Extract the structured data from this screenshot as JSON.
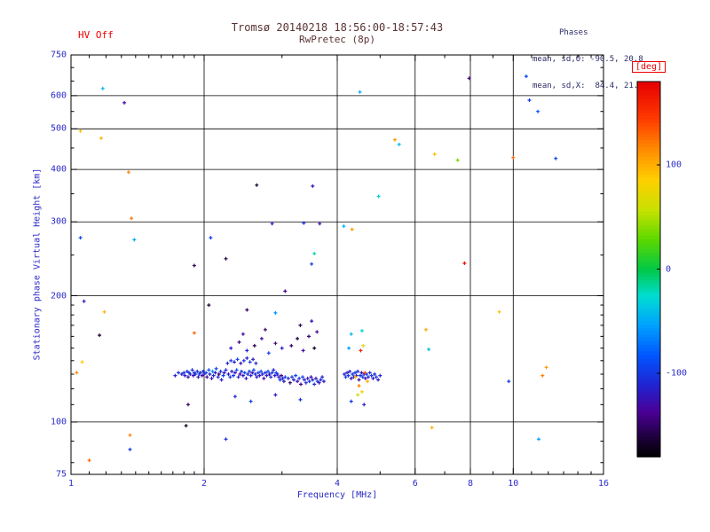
{
  "chart_data": {
    "type": "scatter",
    "title": "Tromsø 20140218 18:56:00-18:57:43",
    "subtitle": "RwPretec (8p)",
    "annotations": {
      "hv_status": "HV Off",
      "phases_header": "Phases",
      "phases_o": "mean, sd,O: -90.5, 20.8",
      "phases_x": "mean, sd,X:  84.4, 21.7"
    },
    "xlabel": "Frequency [MHz]",
    "ylabel": "Stationary phase Virtual Height [km]",
    "xscale": "log",
    "yscale": "log",
    "xlim": [
      1,
      16
    ],
    "ylim": [
      75,
      750
    ],
    "x_ticks": [
      1,
      2,
      4,
      6,
      8,
      10,
      16
    ],
    "x_minor_ticks": [
      1.1,
      1.2,
      1.3,
      1.4,
      1.5,
      1.6,
      1.7,
      1.8,
      1.9,
      3,
      5,
      7,
      9,
      11,
      12,
      13,
      14,
      15
    ],
    "y_ticks": [
      75,
      100,
      200,
      300,
      400,
      500,
      600,
      750
    ],
    "y_minor_ticks": [
      80,
      90,
      110,
      120,
      130,
      140,
      150,
      160,
      170,
      180,
      190,
      250,
      350,
      450,
      550,
      650,
      700
    ],
    "x_gridlines": [
      2,
      4,
      6,
      8,
      10
    ],
    "y_gridlines": [
      100,
      200,
      300,
      400,
      500,
      600
    ],
    "grid": true,
    "legend": false,
    "colorbar": {
      "label": "[deg]",
      "min": -180,
      "max": 180,
      "ticks": [
        100,
        0,
        -100
      ],
      "position": "right"
    },
    "colormap_stops": [
      [
        0.0,
        "#000000"
      ],
      [
        0.05,
        "#1c0038"
      ],
      [
        0.12,
        "#4b0096"
      ],
      [
        0.19,
        "#2222cf"
      ],
      [
        0.27,
        "#0055ff"
      ],
      [
        0.35,
        "#00a0ff"
      ],
      [
        0.43,
        "#00ddd2"
      ],
      [
        0.5,
        "#00c846"
      ],
      [
        0.58,
        "#5cd800"
      ],
      [
        0.66,
        "#c8e100"
      ],
      [
        0.74,
        "#ffcf00"
      ],
      [
        0.82,
        "#ff8c00"
      ],
      [
        0.9,
        "#ff3c00"
      ],
      [
        1.0,
        "#e60000"
      ]
    ],
    "point_format": "[frequency_MHz, virtual_height_km, phase_deg]",
    "points": [
      [
        1.72,
        129,
        -112
      ],
      [
        1.75,
        131,
        -105
      ],
      [
        1.78,
        130,
        -110
      ],
      [
        1.8,
        131,
        -105
      ],
      [
        1.81,
        129,
        -118
      ],
      [
        1.83,
        132,
        -100
      ],
      [
        1.84,
        128,
        -125
      ],
      [
        1.85,
        131,
        -95
      ],
      [
        1.86,
        130,
        -112
      ],
      [
        1.88,
        133,
        -108
      ],
      [
        1.89,
        129,
        -120
      ],
      [
        1.9,
        131,
        -98
      ],
      [
        1.91,
        130,
        -115
      ],
      [
        1.93,
        132,
        -104
      ],
      [
        1.94,
        128,
        -122
      ],
      [
        1.95,
        130,
        -90
      ],
      [
        1.96,
        131,
        -110
      ],
      [
        1.98,
        129,
        -130
      ],
      [
        1.99,
        132,
        -102
      ],
      [
        2.0,
        130,
        -117
      ],
      [
        2.02,
        131,
        -96
      ],
      [
        2.03,
        128,
        -140
      ],
      [
        2.05,
        133,
        -88
      ],
      [
        2.06,
        130,
        -112
      ],
      [
        2.08,
        127,
        -125
      ],
      [
        2.09,
        132,
        -60
      ],
      [
        2.1,
        129,
        -105
      ],
      [
        2.12,
        131,
        -118
      ],
      [
        2.13,
        134,
        -95
      ],
      [
        2.15,
        128,
        -108
      ],
      [
        2.16,
        130,
        -150
      ],
      [
        2.18,
        132,
        -100
      ],
      [
        2.19,
        126,
        -115
      ],
      [
        2.21,
        129,
        -92
      ],
      [
        2.22,
        131,
        -122
      ],
      [
        2.24,
        133,
        -107
      ],
      [
        2.26,
        138,
        -110
      ],
      [
        2.3,
        140,
        -100
      ],
      [
        2.34,
        139,
        -118
      ],
      [
        2.38,
        141,
        -95
      ],
      [
        2.42,
        138,
        -125
      ],
      [
        2.46,
        140,
        -105
      ],
      [
        2.5,
        142,
        -112
      ],
      [
        2.54,
        139,
        -98
      ],
      [
        2.58,
        141,
        -120
      ],
      [
        2.62,
        138,
        -108
      ],
      [
        2.27,
        130,
        -112
      ],
      [
        2.29,
        128,
        -104
      ],
      [
        2.31,
        132,
        -118
      ],
      [
        2.33,
        129,
        -96
      ],
      [
        2.35,
        131,
        -125
      ],
      [
        2.37,
        133,
        -85
      ],
      [
        2.39,
        128,
        -110
      ],
      [
        2.41,
        130,
        -135
      ],
      [
        2.43,
        132,
        -102
      ],
      [
        2.45,
        129,
        -115
      ],
      [
        2.47,
        131,
        -93
      ],
      [
        2.49,
        127,
        -120
      ],
      [
        2.51,
        130,
        -107
      ],
      [
        2.53,
        132,
        -98
      ],
      [
        2.55,
        129,
        -113
      ],
      [
        2.57,
        131,
        -127
      ],
      [
        2.59,
        133,
        -90
      ],
      [
        2.61,
        130,
        -108
      ],
      [
        2.63,
        128,
        -118
      ],
      [
        2.65,
        131,
        -100
      ],
      [
        2.67,
        129,
        -122
      ],
      [
        2.69,
        132,
        -95
      ],
      [
        2.71,
        130,
        -112
      ],
      [
        2.73,
        127,
        -130
      ],
      [
        2.75,
        131,
        -104
      ],
      [
        2.77,
        129,
        -116
      ],
      [
        2.79,
        132,
        -88
      ],
      [
        2.81,
        130,
        -124
      ],
      [
        2.83,
        128,
        -106
      ],
      [
        2.85,
        131,
        -98
      ],
      [
        2.87,
        133,
        -114
      ],
      [
        2.89,
        129,
        -120
      ],
      [
        2.91,
        131,
        -92
      ],
      [
        2.93,
        130,
        -110
      ],
      [
        2.95,
        128,
        -115
      ],
      [
        2.97,
        126,
        -102
      ],
      [
        2.99,
        129,
        -140
      ],
      [
        3.01,
        127,
        -108
      ],
      [
        3.03,
        125,
        -120
      ],
      [
        3.05,
        128,
        -95
      ],
      [
        3.1,
        127,
        -112
      ],
      [
        3.13,
        124,
        -150
      ],
      [
        3.16,
        128,
        -100
      ],
      [
        3.19,
        126,
        -118
      ],
      [
        3.22,
        129,
        -90
      ],
      [
        3.25,
        125,
        -125
      ],
      [
        3.28,
        127,
        -105
      ],
      [
        3.31,
        123,
        -135
      ],
      [
        3.34,
        128,
        -96
      ],
      [
        3.37,
        126,
        -115
      ],
      [
        3.4,
        124,
        -108
      ],
      [
        3.43,
        127,
        -122
      ],
      [
        3.46,
        125,
        -99
      ],
      [
        3.49,
        128,
        -130
      ],
      [
        3.52,
        126,
        -110
      ],
      [
        3.55,
        123,
        -104
      ],
      [
        3.58,
        127,
        -118
      ],
      [
        3.61,
        125,
        -95
      ],
      [
        3.64,
        124,
        -126
      ],
      [
        3.67,
        126,
        -107
      ],
      [
        3.7,
        128,
        -113
      ],
      [
        3.73,
        125,
        -120
      ],
      [
        2.3,
        150,
        -120
      ],
      [
        2.4,
        155,
        -140
      ],
      [
        2.5,
        148,
        -110
      ],
      [
        2.6,
        152,
        -155
      ],
      [
        2.7,
        158,
        -130
      ],
      [
        2.8,
        146,
        -100
      ],
      [
        2.9,
        154,
        -145
      ],
      [
        3.0,
        150,
        -115
      ],
      [
        2.45,
        162,
        -135
      ],
      [
        2.75,
        166,
        -150
      ],
      [
        3.15,
        152,
        -150
      ],
      [
        3.25,
        158,
        -160
      ],
      [
        3.35,
        148,
        -130
      ],
      [
        3.45,
        160,
        -145
      ],
      [
        3.55,
        150,
        -170
      ],
      [
        3.6,
        164,
        -140
      ],
      [
        3.3,
        170,
        -155
      ],
      [
        3.5,
        174,
        -125
      ],
      [
        4.15,
        130,
        -110
      ],
      [
        4.18,
        128,
        -100
      ],
      [
        4.21,
        131,
        -120
      ],
      [
        4.24,
        129,
        -95
      ],
      [
        4.27,
        132,
        -112
      ],
      [
        4.3,
        127,
        -125
      ],
      [
        4.33,
        130,
        -105
      ],
      [
        4.36,
        128,
        -115
      ],
      [
        4.39,
        131,
        -98
      ],
      [
        4.42,
        129,
        -122
      ],
      [
        4.45,
        132,
        -108
      ],
      [
        4.48,
        126,
        -130
      ],
      [
        4.51,
        129,
        -102
      ],
      [
        4.54,
        131,
        -118
      ],
      [
        4.57,
        128,
        -95
      ],
      [
        4.6,
        130,
        -112
      ],
      [
        4.63,
        127,
        -124
      ],
      [
        4.66,
        130,
        -100
      ],
      [
        4.7,
        128,
        -116
      ],
      [
        4.74,
        131,
        -106
      ],
      [
        4.78,
        129,
        -96
      ],
      [
        4.82,
        127,
        -120
      ],
      [
        4.86,
        130,
        -110
      ],
      [
        4.9,
        128,
        -103
      ],
      [
        4.95,
        126,
        -117
      ],
      [
        5.0,
        129,
        -109
      ],
      [
        4.4,
        128,
        95
      ],
      [
        4.48,
        122,
        120
      ],
      [
        4.55,
        118,
        80
      ],
      [
        4.62,
        131,
        140
      ],
      [
        4.45,
        116,
        60
      ],
      [
        4.68,
        125,
        100
      ],
      [
        4.52,
        148,
        160
      ],
      [
        4.58,
        152,
        70
      ],
      [
        4.25,
        150,
        -55
      ],
      [
        4.3,
        162,
        -45
      ],
      [
        4.55,
        165,
        -30
      ],
      [
        2.35,
        115,
        -110
      ],
      [
        2.55,
        112,
        -95
      ],
      [
        2.9,
        116,
        -120
      ],
      [
        3.3,
        113,
        -105
      ],
      [
        4.3,
        112,
        -98
      ],
      [
        4.6,
        110,
        -115
      ],
      [
        2.05,
        190,
        -160
      ],
      [
        2.5,
        185,
        -150
      ],
      [
        2.9,
        182,
        -60
      ],
      [
        3.05,
        205,
        -140
      ],
      [
        3.5,
        238,
        -100
      ],
      [
        3.55,
        252,
        -20
      ],
      [
        2.63,
        367,
        -165
      ],
      [
        3.52,
        365,
        -120
      ],
      [
        2.85,
        297,
        -115
      ],
      [
        3.36,
        298,
        -100
      ],
      [
        3.65,
        297,
        -125
      ],
      [
        4.14,
        293,
        -45
      ],
      [
        4.32,
        288,
        110
      ],
      [
        2.07,
        275,
        -95
      ],
      [
        1.9,
        236,
        -155
      ],
      [
        2.24,
        245,
        -160
      ],
      [
        7.76,
        239,
        175
      ],
      [
        1.37,
        306,
        125
      ],
      [
        1.39,
        272,
        -50
      ],
      [
        1.05,
        275,
        -90
      ],
      [
        1.07,
        194,
        -120
      ],
      [
        1.19,
        183,
        100
      ],
      [
        1.9,
        163,
        130
      ],
      [
        6.35,
        166,
        105
      ],
      [
        6.44,
        149,
        -40
      ],
      [
        9.3,
        183,
        95
      ],
      [
        11.65,
        129,
        120
      ],
      [
        11.88,
        135,
        110
      ],
      [
        9.77,
        125,
        -100
      ],
      [
        1.06,
        139,
        90
      ],
      [
        1.03,
        131,
        115
      ],
      [
        1.16,
        161,
        -160
      ],
      [
        4.96,
        345,
        -30
      ],
      [
        1.35,
        394,
        120
      ],
      [
        1.18,
        624,
        -45
      ],
      [
        1.32,
        577,
        -130
      ],
      [
        4.5,
        612,
        -50
      ],
      [
        10.88,
        585,
        -100
      ],
      [
        11.37,
        550,
        -85
      ],
      [
        7.95,
        660,
        -140
      ],
      [
        10.7,
        667,
        -90
      ],
      [
        1.05,
        494,
        95
      ],
      [
        1.17,
        475,
        100
      ],
      [
        5.4,
        471,
        110
      ],
      [
        5.52,
        459,
        -40
      ],
      [
        6.64,
        435,
        95
      ],
      [
        7.49,
        421,
        35
      ],
      [
        10.0,
        427,
        130
      ],
      [
        12.48,
        425,
        -95
      ],
      [
        1.36,
        93,
        120
      ],
      [
        1.82,
        98,
        -170
      ],
      [
        2.24,
        91,
        -105
      ],
      [
        1.36,
        86,
        -95
      ],
      [
        1.1,
        81,
        130
      ],
      [
        6.55,
        97,
        100
      ],
      [
        11.42,
        91,
        -55
      ],
      [
        1.84,
        110,
        -150
      ]
    ]
  }
}
